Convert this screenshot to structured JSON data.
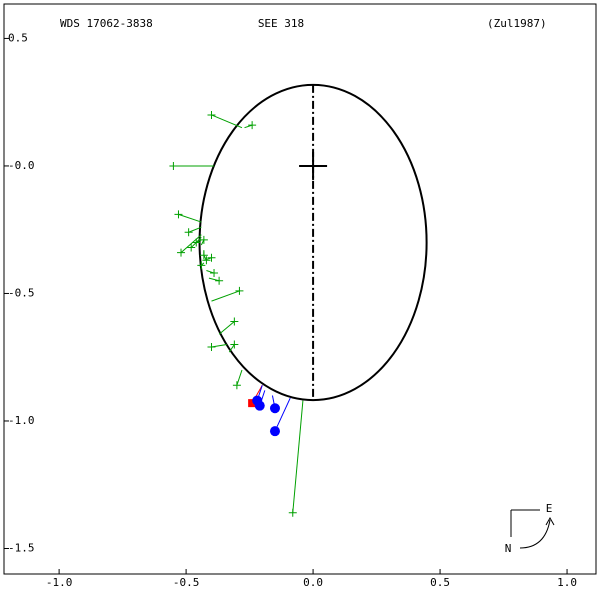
{
  "chart_data": {
    "type": "orbit",
    "header": {
      "left": "WDS 17062-3838",
      "center": "SEE 318",
      "right": "(Zul1987)"
    },
    "compass": {
      "east": "E",
      "north": "N"
    },
    "xlim": [
      -1.217,
      1.114
    ],
    "ylim": [
      -1.6,
      0.635
    ],
    "xticks": [
      {
        "value": -1,
        "label": "-1.0"
      },
      -0.5,
      {
        "value": 0,
        "label": "0.0"
      },
      0.5,
      {
        "value": 1,
        "label": "1.0"
      }
    ],
    "yticks": [
      0.5,
      {
        "value": 0,
        "label": "-0.0"
      },
      -0.5,
      {
        "value": -1,
        "label": "-1.0"
      },
      -1.5
    ],
    "orbit": {
      "cx": 0,
      "cy": -0.3,
      "rx": 0.447,
      "ry": 0.618,
      "color": "#000000"
    },
    "series": [
      {
        "color": "#00a000",
        "marker": "plus",
        "x": [
          -0.4,
          -0.24,
          -0.55,
          -0.53,
          -0.49,
          -0.52,
          -0.48,
          -0.46,
          -0.43,
          -0.43,
          -0.42,
          -0.4,
          -0.44,
          -0.39,
          -0.37,
          -0.29,
          -0.31,
          -0.4,
          -0.31,
          -0.3,
          -0.08
        ],
        "y": [
          0.2,
          0.16,
          0,
          -0.19,
          -0.26,
          -0.34,
          -0.32,
          -0.3,
          -0.29,
          -0.35,
          -0.37,
          -0.36,
          -0.39,
          -0.42,
          -0.45,
          -0.49,
          -0.61,
          -0.71,
          -0.7,
          -0.86,
          -1.36
        ],
        "end_x": [
          -0.28,
          -0.27,
          -0.39,
          -0.44,
          -0.44,
          -0.44,
          -0.44,
          -0.44,
          -0.44,
          -0.43,
          -0.43,
          -0.43,
          -0.43,
          -0.42,
          -0.41,
          -0.4,
          -0.37,
          -0.34,
          -0.33,
          -0.28,
          -0.04
        ],
        "end_y": [
          0.15,
          0.15,
          0,
          -0.22,
          -0.24,
          -0.27,
          -0.28,
          -0.29,
          -0.31,
          -0.33,
          -0.35,
          -0.37,
          -0.38,
          -0.41,
          -0.44,
          -0.53,
          -0.66,
          -0.7,
          -0.73,
          -0.8,
          -0.92
        ]
      },
      {
        "color": "#ff0000",
        "marker": "square",
        "x": [
          -0.24
        ],
        "y": [
          -0.93
        ],
        "end_x": [
          -0.2
        ],
        "end_y": [
          -0.86
        ]
      },
      {
        "color": "#0000ff",
        "marker": "circle",
        "x": [
          -0.22,
          -0.21,
          -0.15,
          -0.15
        ],
        "y": [
          -0.92,
          -0.94,
          -0.95,
          -1.04
        ],
        "end_x": [
          -0.2,
          -0.19,
          -0.16,
          -0.09
        ],
        "end_y": [
          -0.86,
          -0.88,
          -0.9,
          -0.91
        ]
      }
    ]
  }
}
